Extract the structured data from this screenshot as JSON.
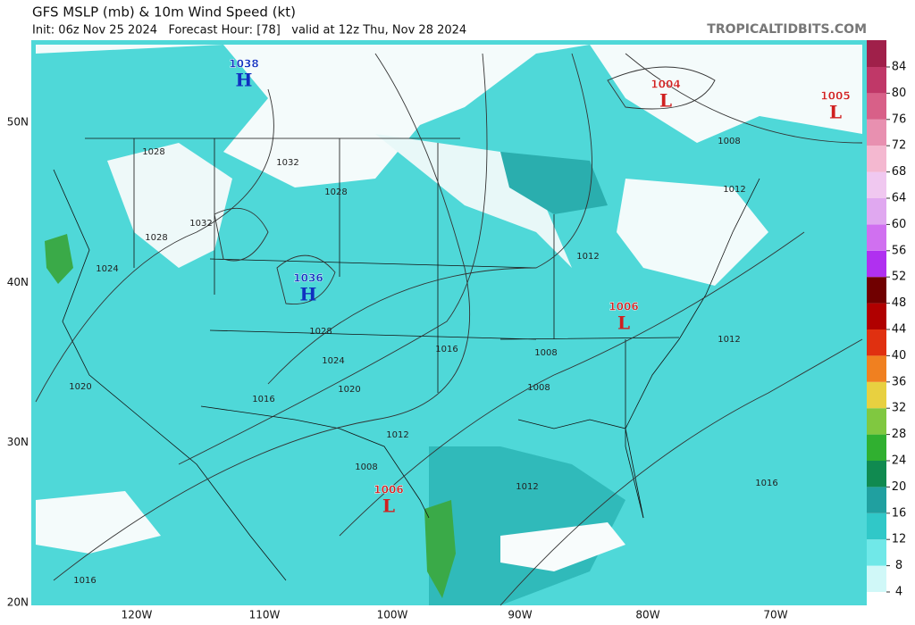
{
  "header": {
    "title": "GFS MSLP (mb) & 10m Wind Speed (kt)",
    "subtitle": "Init: 06z Nov 25 2024   Forecast Hour: [78]   valid at 12z Thu, Nov 28 2024",
    "credit": "TROPICALTIDBITS.COM"
  },
  "centers": [
    {
      "value": "1038",
      "symbol": "H"
    },
    {
      "value": "1036",
      "symbol": "H"
    },
    {
      "value": "1004",
      "symbol": "L"
    },
    {
      "value": "1005",
      "symbol": "L"
    },
    {
      "value": "1006",
      "symbol": "L"
    },
    {
      "value": "1006",
      "symbol": "L"
    }
  ],
  "isobar_labels": [
    "1028",
    "1032",
    "1028",
    "1032",
    "1028",
    "1024",
    "1028",
    "1024",
    "1020",
    "1016",
    "1016",
    "1008",
    "1008",
    "1012",
    "1008",
    "1012",
    "1012",
    "1012",
    "1008",
    "1012",
    "1016",
    "1020",
    "1016"
  ],
  "latitudes": [
    "50N",
    "40N",
    "30N",
    "20N"
  ],
  "longitudes": [
    "120W",
    "110W",
    "100W",
    "90W",
    "80W",
    "70W"
  ],
  "colorbar": {
    "ticks": [
      4,
      8,
      12,
      16,
      20,
      24,
      28,
      32,
      36,
      40,
      44,
      48,
      52,
      56,
      60,
      64,
      68,
      72,
      76,
      80,
      84
    ],
    "colors": [
      "#ffffff",
      "#d0f8f8",
      "#70e8e8",
      "#30c8c8",
      "#20a0a0",
      "#108a50",
      "#30b030",
      "#80c840",
      "#e8d040",
      "#f08020",
      "#e03010",
      "#b00000",
      "#700000",
      "#b030f0",
      "#d070f0",
      "#e0a8f0",
      "#f0c8f0",
      "#f4b8d0",
      "#e890b0",
      "#d86088",
      "#c03868",
      "#a0204a"
    ]
  }
}
